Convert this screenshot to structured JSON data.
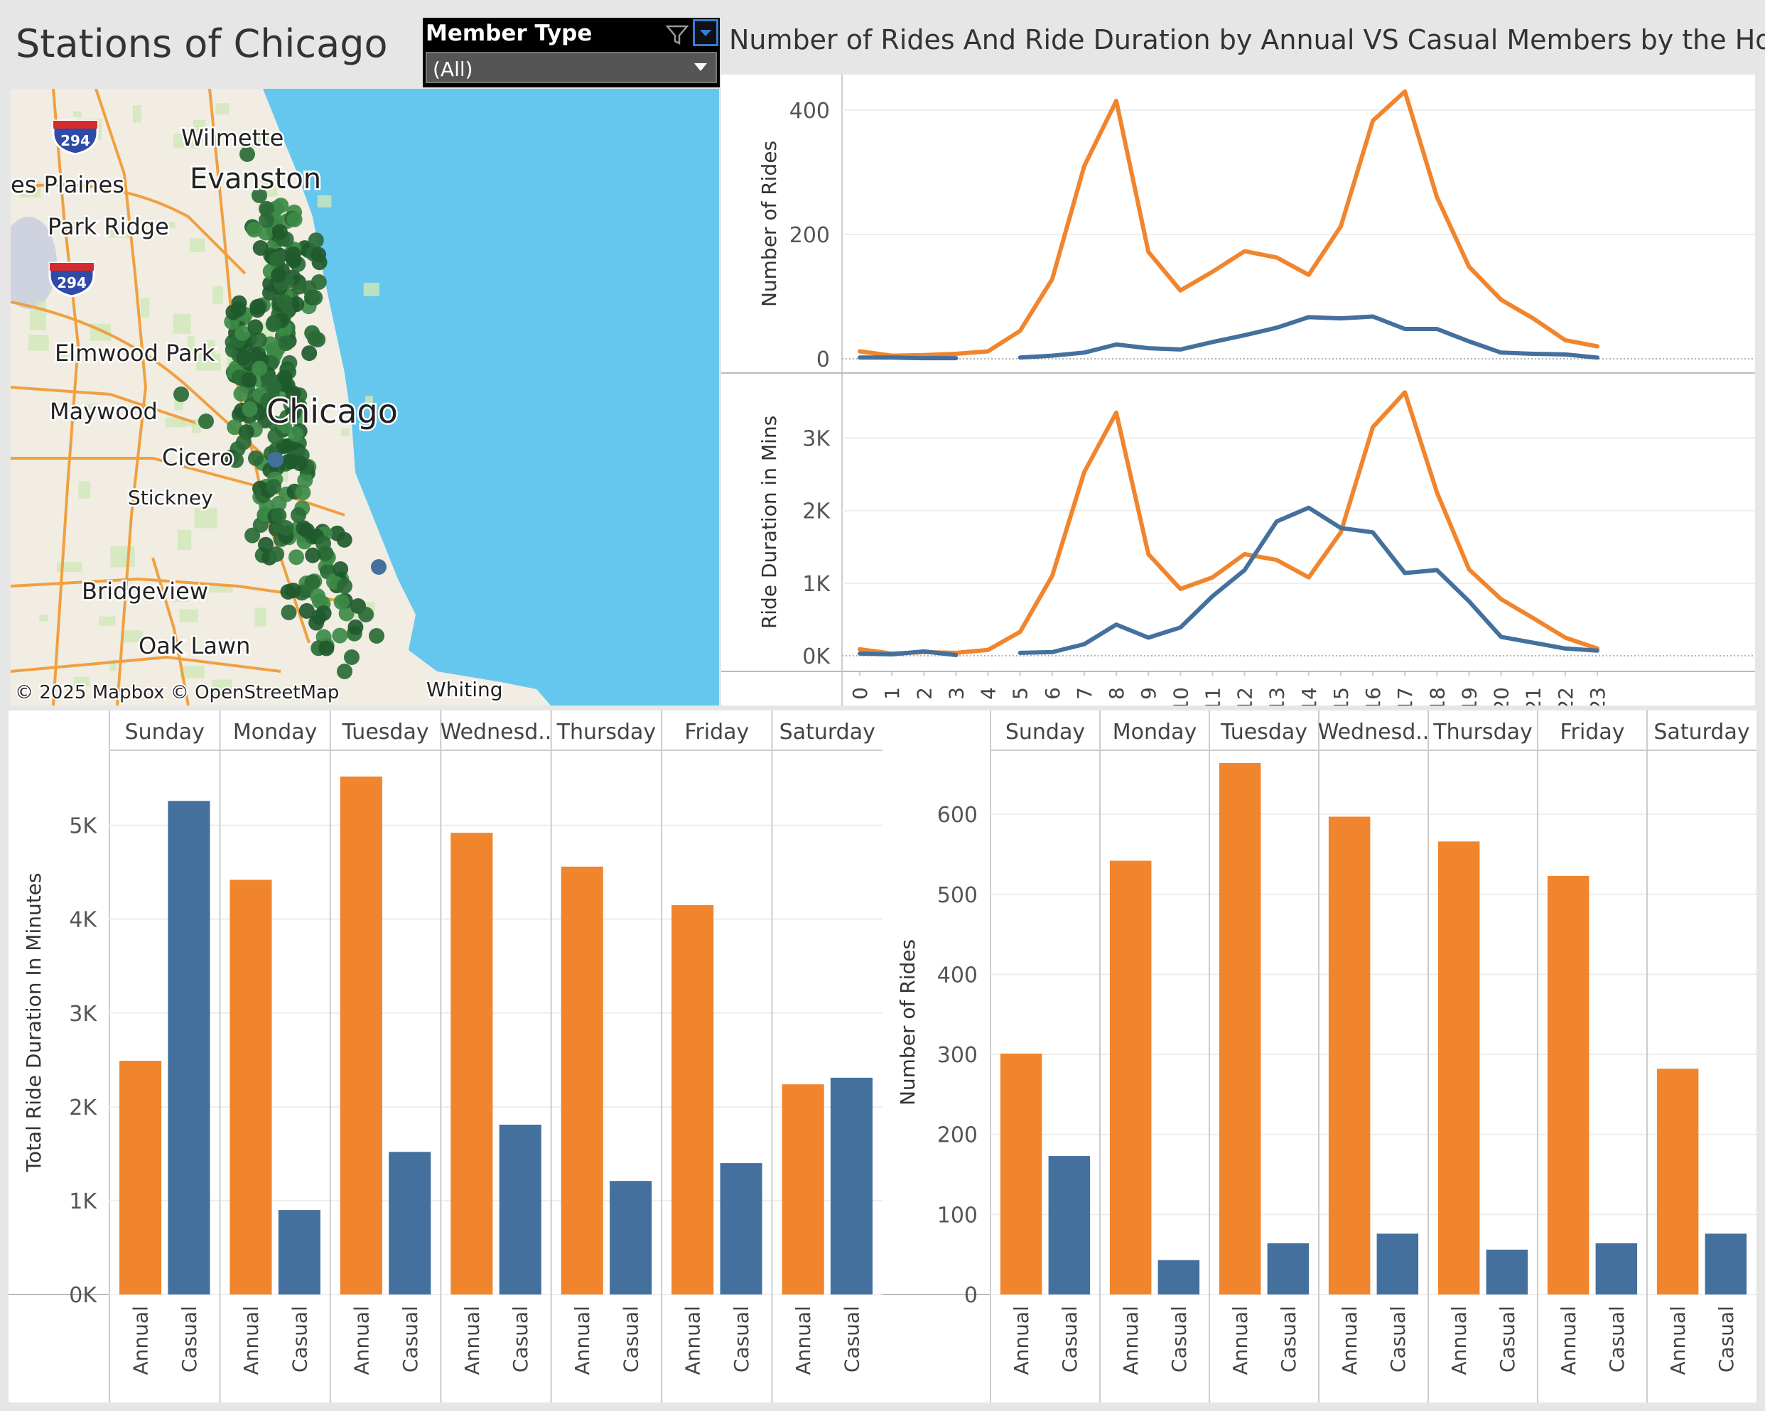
{
  "header": {
    "map_title": "Stations of Chicago",
    "chart_title": "Number of Rides And Ride Duration by Annual VS Casual Members by the Hours"
  },
  "filter": {
    "label": "Member Type",
    "value": "(All)"
  },
  "colors": {
    "annual": "#f0852d",
    "casual": "#44709d",
    "station": "#2a6a36",
    "water": "#65c7ee",
    "land": "#f1ede3"
  },
  "map": {
    "labels": {
      "wilmette": "Wilmette",
      "evanston": "Evanston",
      "des_plaines": "es Plaines",
      "park_ridge": "Park Ridge",
      "elmwood_park": "Elmwood Park",
      "maywood": "Maywood",
      "chicago": "Chicago",
      "cicero": "Cicero",
      "stickney": "Stickney",
      "bridgeview": "Bridgeview",
      "oak_lawn": "Oak Lawn",
      "whiting": "Whiting",
      "shield_1": "294",
      "shield_2": "294"
    },
    "attribution": "© 2025 Mapbox  © OpenStreetMap"
  },
  "chart_data": [
    {
      "type": "line",
      "ylabel": "Number of Rides",
      "x": [
        0,
        1,
        2,
        3,
        4,
        5,
        6,
        7,
        8,
        9,
        10,
        11,
        12,
        13,
        14,
        15,
        16,
        17,
        18,
        19,
        20,
        21,
        22,
        23
      ],
      "ylim": [
        0,
        440
      ],
      "yticks": [
        "0",
        "200",
        "400"
      ],
      "ytick_values": [
        0,
        200,
        400
      ],
      "series": [
        {
          "key": "annual",
          "values": [
            12,
            5,
            6,
            8,
            12,
            45,
            128,
            310,
            415,
            172,
            110,
            140,
            173,
            163,
            135,
            213,
            383,
            430,
            260,
            148,
            95,
            65,
            30,
            20
          ]
        },
        {
          "key": "casual",
          "values": [
            2,
            2,
            1,
            1,
            null,
            2,
            5,
            10,
            23,
            17,
            15,
            27,
            38,
            50,
            67,
            65,
            68,
            48,
            48,
            28,
            10,
            8,
            7,
            2
          ]
        }
      ]
    },
    {
      "type": "line",
      "ylabel": "Ride Duration in Mins",
      "x": [
        0,
        1,
        2,
        3,
        4,
        5,
        6,
        7,
        8,
        9,
        10,
        11,
        12,
        13,
        14,
        15,
        16,
        17,
        18,
        19,
        20,
        21,
        22,
        23
      ],
      "ylim": [
        0,
        3700
      ],
      "yticks": [
        "0K",
        "1K",
        "2K",
        "3K"
      ],
      "ytick_values": [
        0,
        1000,
        2000,
        3000
      ],
      "series": [
        {
          "key": "annual",
          "values": [
            90,
            30,
            50,
            40,
            80,
            330,
            1100,
            2530,
            3350,
            1400,
            920,
            1080,
            1400,
            1320,
            1080,
            1700,
            3150,
            3630,
            2250,
            1190,
            780,
            520,
            250,
            100
          ]
        },
        {
          "key": "casual",
          "values": [
            30,
            20,
            60,
            10,
            null,
            40,
            50,
            160,
            430,
            250,
            390,
            820,
            1180,
            1850,
            2040,
            1760,
            1700,
            1140,
            1180,
            750,
            260,
            180,
            100,
            70
          ]
        }
      ]
    },
    {
      "type": "bar",
      "ylabel": "Total Ride Duration In Minutes",
      "categories": [
        "Sunday",
        "Monday",
        "Tuesday",
        "Wednesd..",
        "Thursday",
        "Friday",
        "Saturday"
      ],
      "member_labels": [
        "Annual",
        "Casual"
      ],
      "ylim": [
        0,
        5800
      ],
      "yticks": [
        "0K",
        "1K",
        "2K",
        "3K",
        "4K",
        "5K"
      ],
      "ytick_values": [
        0,
        1000,
        2000,
        3000,
        4000,
        5000
      ],
      "series": [
        {
          "key": "annual",
          "values": [
            2490,
            4420,
            5520,
            4920,
            4560,
            4150,
            2240
          ]
        },
        {
          "key": "casual",
          "values": [
            5260,
            900,
            1520,
            1810,
            1210,
            1400,
            2310
          ]
        }
      ]
    },
    {
      "type": "bar",
      "ylabel": "Number of Rides",
      "categories": [
        "Sunday",
        "Monday",
        "Tuesday",
        "Wednesd..",
        "Thursday",
        "Friday",
        "Saturday"
      ],
      "member_labels": [
        "Annual",
        "Casual"
      ],
      "ylim": [
        0,
        680
      ],
      "yticks": [
        "0",
        "100",
        "200",
        "300",
        "400",
        "500",
        "600"
      ],
      "ytick_values": [
        0,
        100,
        200,
        300,
        400,
        500,
        600
      ],
      "series": [
        {
          "key": "annual",
          "values": [
            301,
            542,
            664,
            597,
            566,
            523,
            282
          ]
        },
        {
          "key": "casual",
          "values": [
            173,
            43,
            64,
            76,
            56,
            64,
            76
          ]
        }
      ]
    }
  ]
}
